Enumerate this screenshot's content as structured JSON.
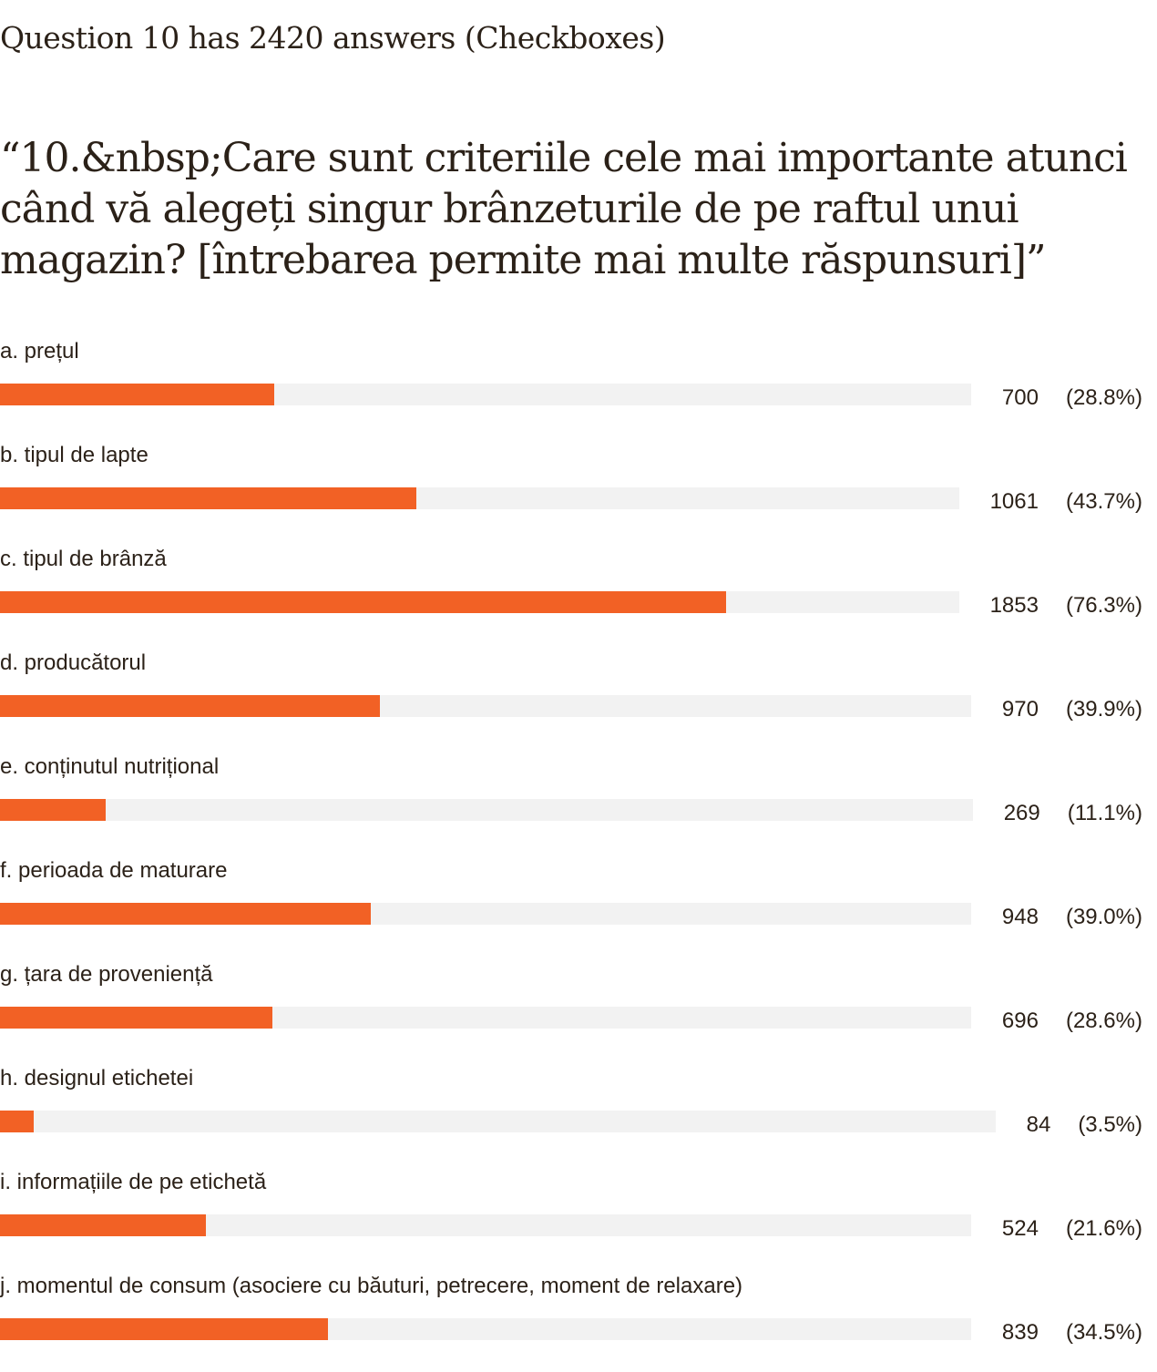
{
  "header": {
    "summary": "Question 10 has 2420 answers (Checkboxes)",
    "question": "“10.&nbsp;Care sunt criteriile cele mai importante atunci când vă alegeți singur brânzeturile de pe raftul unui magazin? [întrebarea permite mai multe răspunsuri]”"
  },
  "colors": {
    "bar_fill": "#f26125",
    "bar_track": "#f2f2f2",
    "text": "#2b2118"
  },
  "chart_data": {
    "type": "bar",
    "orientation": "horizontal",
    "total_answers": 2420,
    "categories": [
      "a. prețul",
      "b. tipul de lapte",
      "c. tipul de brânză",
      "d. producătorul",
      "e. conținutul nutrițional",
      "f. perioada de maturare",
      "g. țara de proveniență",
      "h. designul etichetei",
      "i. informațiile de pe etichetă",
      "j. momentul de consum (asociere cu băuturi, petrecere, moment de relaxare)"
    ],
    "values": [
      700,
      1061,
      1853,
      970,
      269,
      948,
      696,
      84,
      524,
      839
    ],
    "percent_labels": [
      "(28.8%)",
      "(43.7%)",
      "(76.3%)",
      "(39.9%)",
      "(11.1%)",
      "(39.0%)",
      "(28.6%)",
      "(3.5%)",
      "(21.6%)",
      "(34.5%)"
    ],
    "percents": [
      28.8,
      43.7,
      76.3,
      39.9,
      11.1,
      39.0,
      28.6,
      3.5,
      21.6,
      34.5
    ],
    "xlim": [
      0,
      100
    ]
  }
}
